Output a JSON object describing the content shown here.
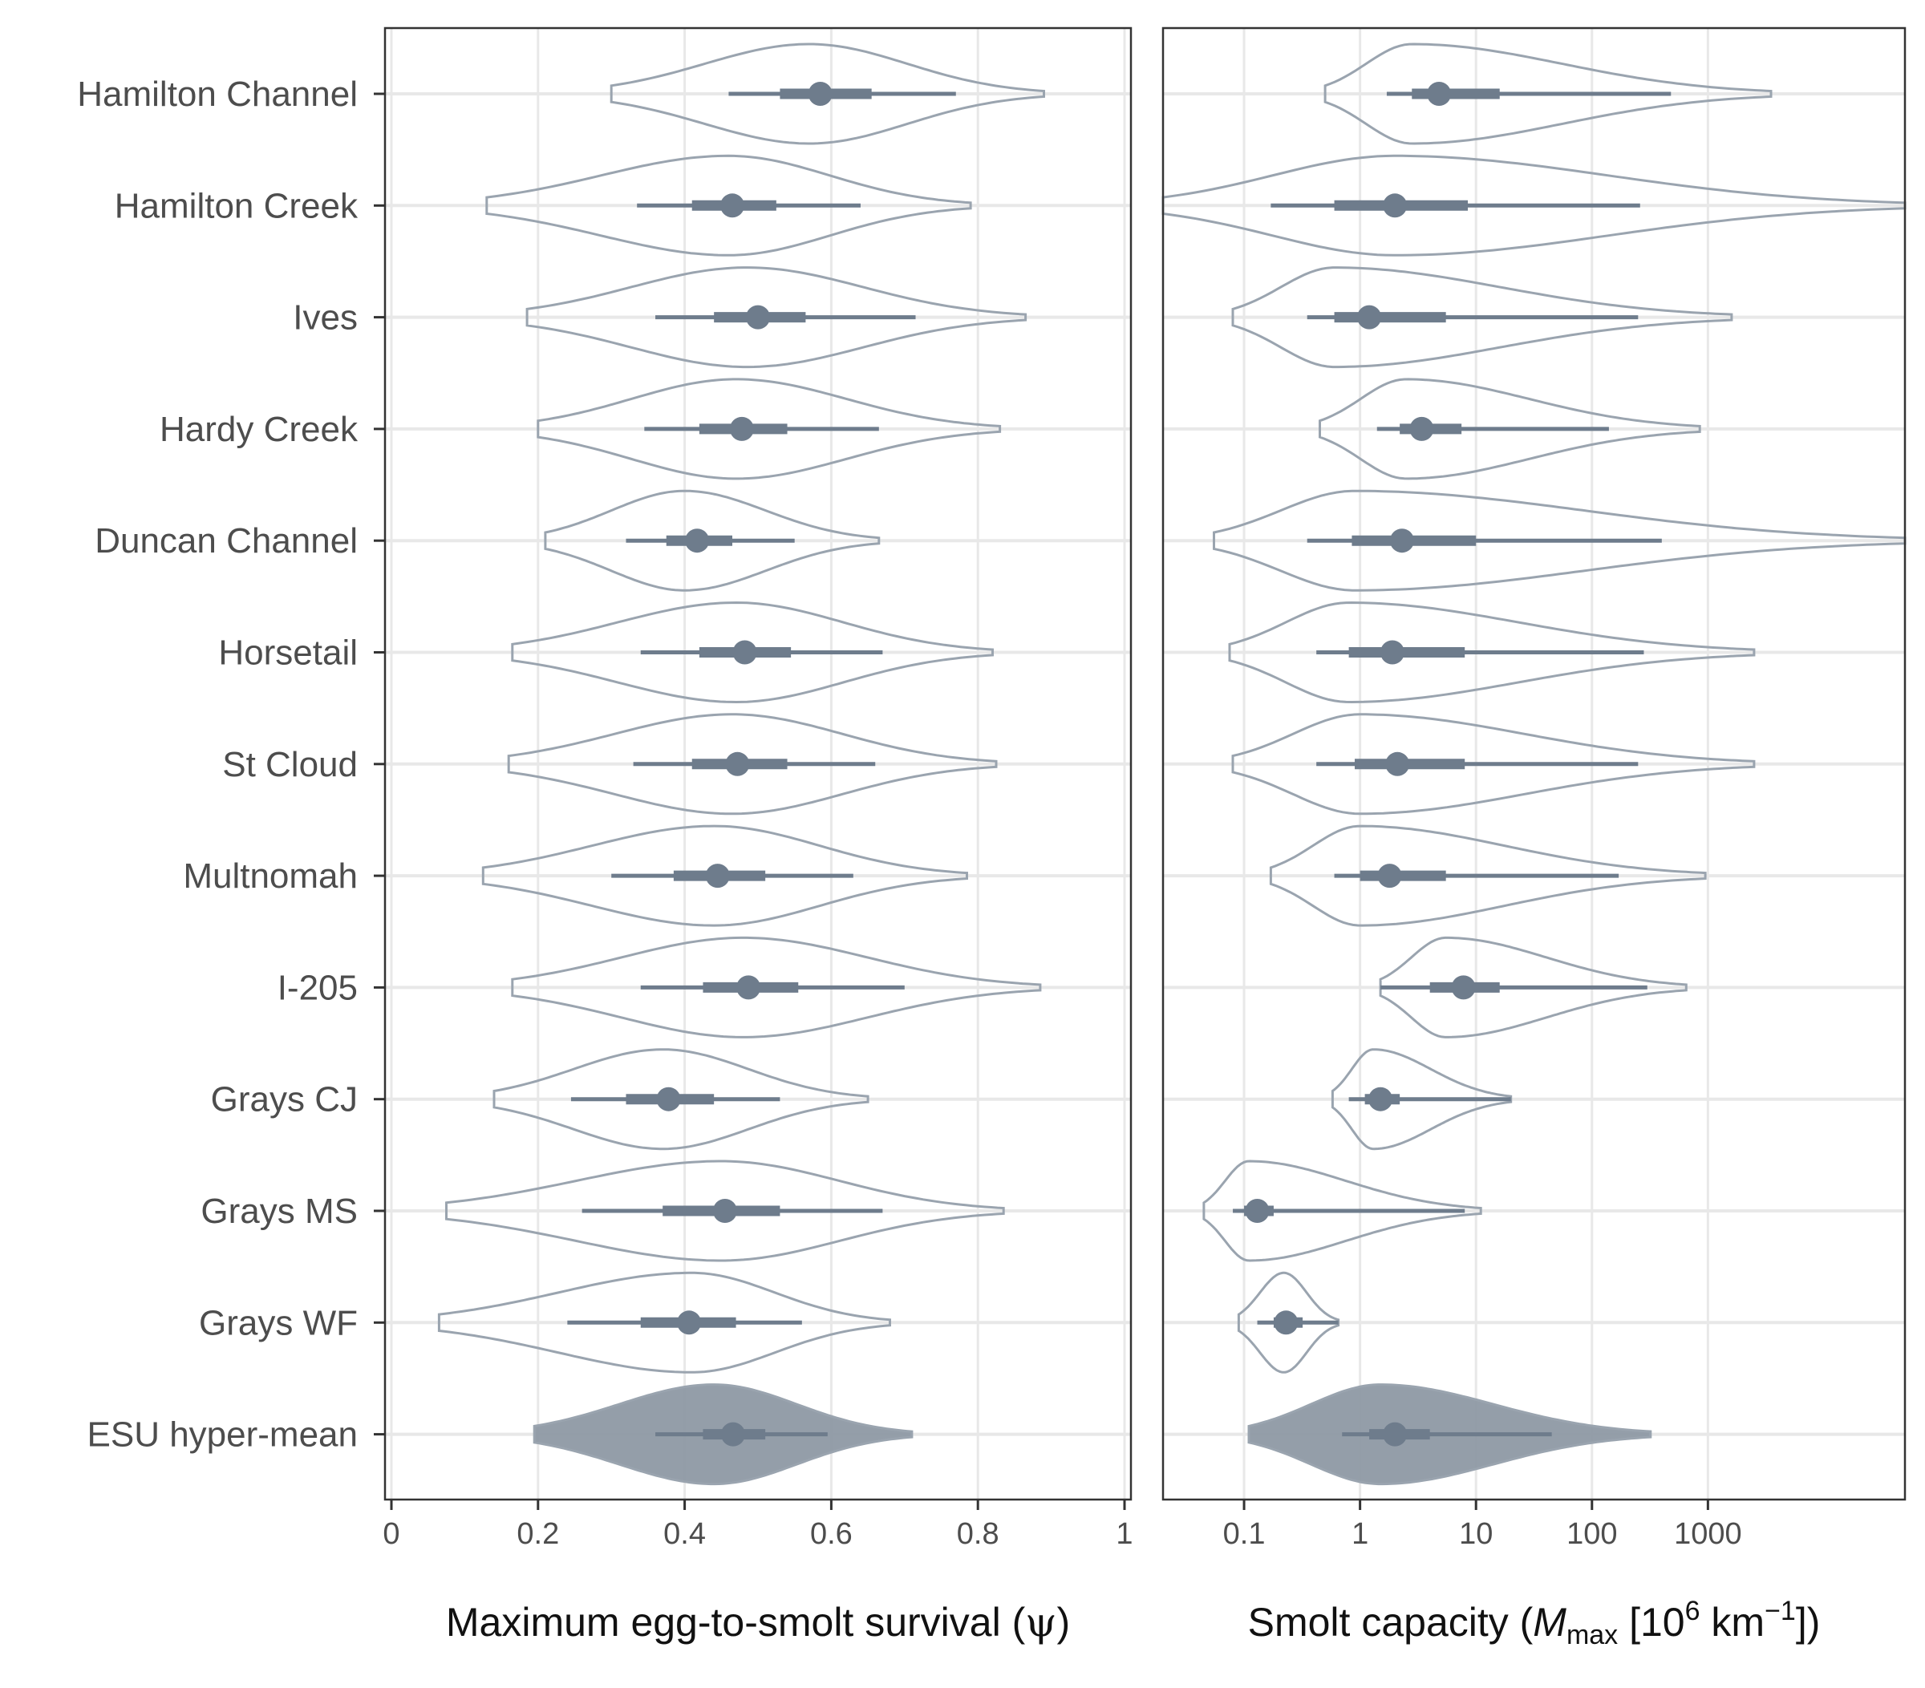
{
  "chart_data": [
    {
      "type": "violin",
      "xlabel": "Maximum egg-to-smolt survival (ψ)",
      "xlim": [
        0,
        1
      ],
      "xticks": [
        0,
        0.2,
        0.4,
        0.6,
        0.8,
        1
      ],
      "tick_labels": [
        "0",
        "0.2",
        "0.4",
        "0.6",
        "0.8",
        "1"
      ],
      "grid": true,
      "categories": [
        "Hamilton Channel",
        "Hamilton Creek",
        "Ives",
        "Hardy Creek",
        "Duncan Channel",
        "Horsetail",
        "St Cloud",
        "Multnomah",
        "I-205",
        "Grays CJ",
        "Grays MS",
        "Grays WF",
        "ESU hyper-mean"
      ],
      "series": [
        {
          "median": 0.585,
          "q25": 0.53,
          "q75": 0.655,
          "lo90": 0.46,
          "hi90": 0.77,
          "min": 0.3,
          "max": 0.89,
          "mode": 0.57
        },
        {
          "median": 0.465,
          "q25": 0.41,
          "q75": 0.525,
          "lo90": 0.335,
          "hi90": 0.64,
          "min": 0.13,
          "max": 0.79,
          "mode": 0.46
        },
        {
          "median": 0.5,
          "q25": 0.44,
          "q75": 0.565,
          "lo90": 0.36,
          "hi90": 0.715,
          "min": 0.185,
          "max": 0.865,
          "mode": 0.485
        },
        {
          "median": 0.478,
          "q25": 0.42,
          "q75": 0.54,
          "lo90": 0.345,
          "hi90": 0.665,
          "min": 0.2,
          "max": 0.83,
          "mode": 0.47
        },
        {
          "median": 0.417,
          "q25": 0.375,
          "q75": 0.465,
          "lo90": 0.32,
          "hi90": 0.55,
          "min": 0.21,
          "max": 0.665,
          "mode": 0.4
        },
        {
          "median": 0.482,
          "q25": 0.42,
          "q75": 0.545,
          "lo90": 0.34,
          "hi90": 0.67,
          "min": 0.165,
          "max": 0.82,
          "mode": 0.47
        },
        {
          "median": 0.472,
          "q25": 0.41,
          "q75": 0.54,
          "lo90": 0.33,
          "hi90": 0.66,
          "min": 0.16,
          "max": 0.825,
          "mode": 0.465
        },
        {
          "median": 0.445,
          "q25": 0.385,
          "q75": 0.51,
          "lo90": 0.3,
          "hi90": 0.63,
          "min": 0.125,
          "max": 0.785,
          "mode": 0.44
        },
        {
          "median": 0.487,
          "q25": 0.425,
          "q75": 0.555,
          "lo90": 0.34,
          "hi90": 0.7,
          "min": 0.165,
          "max": 0.885,
          "mode": 0.48
        },
        {
          "median": 0.378,
          "q25": 0.32,
          "q75": 0.44,
          "lo90": 0.245,
          "hi90": 0.53,
          "min": 0.14,
          "max": 0.65,
          "mode": 0.37
        },
        {
          "median": 0.455,
          "q25": 0.37,
          "q75": 0.53,
          "lo90": 0.26,
          "hi90": 0.67,
          "min": 0.075,
          "max": 0.835,
          "mode": 0.45
        },
        {
          "median": 0.406,
          "q25": 0.34,
          "q75": 0.47,
          "lo90": 0.24,
          "hi90": 0.56,
          "min": 0.065,
          "max": 0.68,
          "mode": 0.41
        },
        {
          "median": 0.466,
          "q25": 0.425,
          "q75": 0.51,
          "lo90": 0.36,
          "hi90": 0.595,
          "min": 0.195,
          "max": 0.71,
          "mode": 0.44
        }
      ]
    },
    {
      "type": "violin",
      "xlabel": "Smolt capacity (Mmax [10^6 km^-1])",
      "xscale": "log10",
      "xlim": [
        0.02,
        50000
      ],
      "xticks": [
        0.1,
        1,
        10,
        100,
        1000
      ],
      "tick_labels": [
        "0.1",
        "1",
        "10",
        "100",
        "1000"
      ],
      "grid": true,
      "categories": [
        "Hamilton Channel",
        "Hamilton Creek",
        "Ives",
        "Hardy Creek",
        "Duncan Channel",
        "Horsetail",
        "St Cloud",
        "Multnomah",
        "I-205",
        "Grays CJ",
        "Grays MS",
        "Grays WF",
        "ESU hyper-mean"
      ],
      "series": [
        {
          "median": 4.8,
          "q25": 2.8,
          "q75": 16,
          "lo90": 1.7,
          "hi90": 480,
          "min": 0.5,
          "max": 3500,
          "mode": 2.8
        },
        {
          "median": 2.0,
          "q25": 0.6,
          "q75": 8.5,
          "lo90": 0.17,
          "hi90": 260,
          "min": 0.02,
          "max": 50000,
          "mode": 2.0
        },
        {
          "median": 1.2,
          "q25": 0.6,
          "q75": 5.5,
          "lo90": 0.35,
          "hi90": 250,
          "min": 0.08,
          "max": 1600,
          "mode": 0.6
        },
        {
          "median": 3.4,
          "q25": 2.2,
          "q75": 7.5,
          "lo90": 1.4,
          "hi90": 140,
          "min": 0.45,
          "max": 850,
          "mode": 2.5
        },
        {
          "median": 2.3,
          "q25": 0.85,
          "q75": 10,
          "lo90": 0.35,
          "hi90": 400,
          "min": 0.055,
          "max": 50000,
          "mode": 0.9
        },
        {
          "median": 1.9,
          "q25": 0.8,
          "q75": 8,
          "lo90": 0.42,
          "hi90": 280,
          "min": 0.075,
          "max": 2500,
          "mode": 0.8
        },
        {
          "median": 2.1,
          "q25": 0.9,
          "q75": 8,
          "lo90": 0.42,
          "hi90": 250,
          "min": 0.08,
          "max": 2500,
          "mode": 1.0
        },
        {
          "median": 1.8,
          "q25": 1.0,
          "q75": 5.5,
          "lo90": 0.6,
          "hi90": 170,
          "min": 0.17,
          "max": 950,
          "mode": 1.0
        },
        {
          "median": 7.8,
          "q25": 4.0,
          "q75": 16,
          "lo90": 1.5,
          "hi90": 300,
          "min": 1.5,
          "max": 650,
          "mode": 5.5
        },
        {
          "median": 1.5,
          "q25": 1.1,
          "q75": 2.2,
          "lo90": 0.8,
          "hi90": 20,
          "min": 0.58,
          "max": 20,
          "mode": 1.3
        },
        {
          "median": 0.13,
          "q25": 0.1,
          "q75": 0.18,
          "lo90": 0.08,
          "hi90": 8,
          "min": 0.045,
          "max": 11,
          "mode": 0.11
        },
        {
          "median": 0.23,
          "q25": 0.18,
          "q75": 0.32,
          "lo90": 0.13,
          "hi90": 0.65,
          "min": 0.09,
          "max": 0.65,
          "mode": 0.22
        },
        {
          "median": 2.0,
          "q25": 1.2,
          "q75": 4.0,
          "lo90": 0.7,
          "hi90": 45,
          "min": 0.11,
          "max": 320,
          "mode": 1.5
        }
      ]
    }
  ],
  "colors": {
    "outline": "#9aa4af",
    "point": "#6e7c8c",
    "fill": "#8e99a4",
    "grid": "#e8e8e8",
    "frame": "#333333"
  }
}
